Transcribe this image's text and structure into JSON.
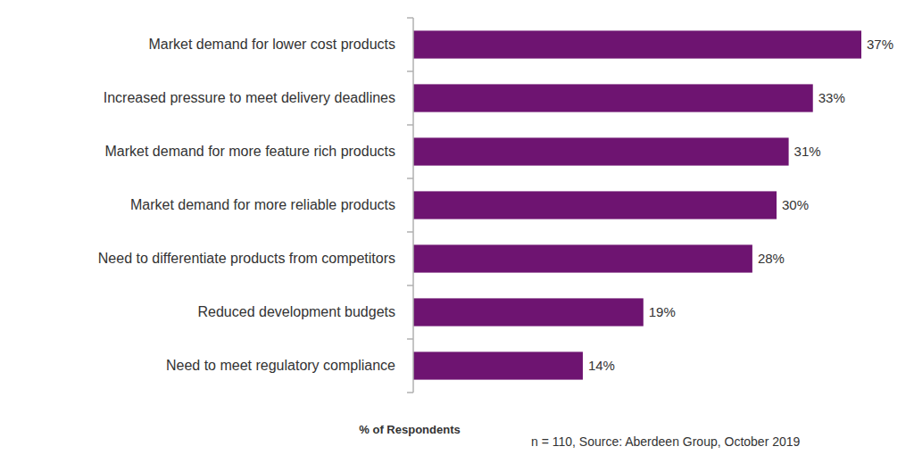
{
  "chart_data": {
    "type": "bar",
    "orientation": "horizontal",
    "categories": [
      "Market demand for lower cost products",
      "Increased pressure to meet delivery deadlines",
      "Market demand for more feature rich products",
      "Market demand for more reliable products",
      "Need to differentiate products from competitors",
      "Reduced development budgets",
      "Need to meet regulatory compliance"
    ],
    "values": [
      37,
      33,
      31,
      30,
      28,
      19,
      14
    ],
    "value_labels": [
      "37%",
      "33%",
      "31%",
      "30%",
      "28%",
      "19%",
      "14%"
    ],
    "color": "#6e1471",
    "xlim": [
      0,
      37
    ],
    "x_label": "% of Respondents",
    "annotations": [
      "n = 110, Source: Aberdeen Group, October 2019"
    ],
    "data_labels": true,
    "grid": false,
    "tick_labels": "y"
  }
}
